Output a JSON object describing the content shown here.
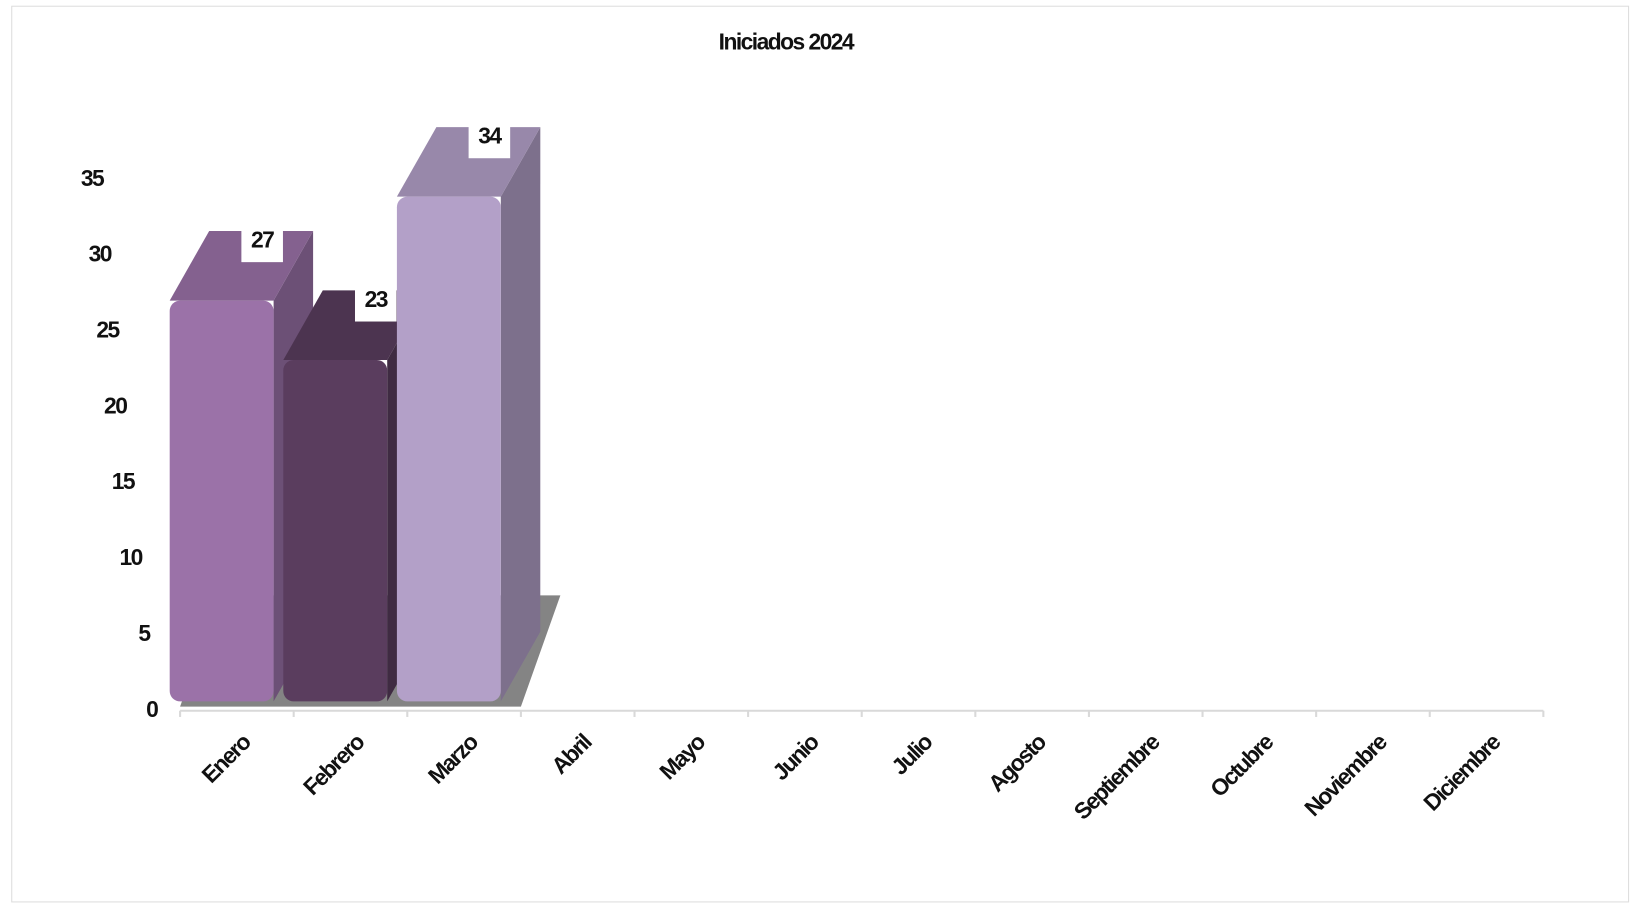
{
  "chart_data": {
    "type": "bar3d",
    "title": "Iniciados 2024",
    "categories": [
      "Enero",
      "Febrero",
      "Marzo",
      "Abril",
      "Mayo",
      "Junio",
      "Julio",
      "Agosto",
      "Septiembre",
      "Octubre",
      "Noviembre",
      "Diciembre"
    ],
    "values": [
      27,
      23,
      34,
      null,
      null,
      null,
      null,
      null,
      null,
      null,
      null,
      null
    ],
    "colors": [
      "#9b72a8",
      "#5a3d5e",
      "#b3a0c8",
      null,
      null,
      null,
      null,
      null,
      null,
      null,
      null,
      null
    ],
    "ylim": [
      0,
      35
    ],
    "yticks": [
      0,
      5,
      10,
      15,
      20,
      25,
      30,
      35
    ],
    "grid": false,
    "data_labels": true
  }
}
